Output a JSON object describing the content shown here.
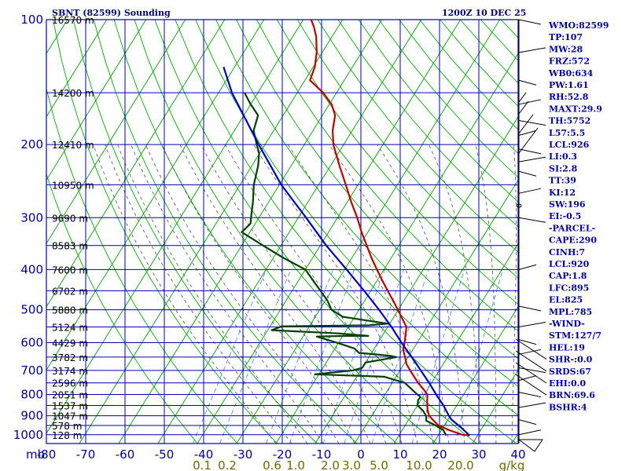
{
  "title_left": "SBNT (82599) Sounding",
  "title_right": "1200Z 10 DEC 25",
  "chart_data": {
    "type": "line",
    "subtype": "skew-t log-p sounding",
    "x_unit_label": "mb",
    "y_axis_pressure_mb": [
      100,
      200,
      300,
      400,
      500,
      600,
      700,
      800,
      900,
      1000
    ],
    "y_tick_labels": [
      "100",
      "200",
      "300",
      "400",
      "500",
      "600",
      "700",
      "800",
      "900",
      "1000"
    ],
    "x_range_c": [
      -80,
      40
    ],
    "x_tick_labels": [
      "-80",
      "-70",
      "-60",
      "-50",
      "-40",
      "-30",
      "-20",
      "-10",
      "0",
      "10",
      "20",
      "30",
      "40"
    ],
    "x_tick_values": [
      -80,
      -70,
      -60,
      -50,
      -40,
      -30,
      -20,
      -10,
      0,
      10,
      20,
      30,
      40
    ],
    "mixing_ratio_labels": [
      "0.1",
      "0.2",
      "0.6",
      "1.0",
      "2.0",
      "3.0",
      "5.0",
      "10.0",
      "20.0",
      "g/kg"
    ],
    "mixing_ratio_values": [
      0.1,
      0.2,
      0.6,
      1.0,
      2.0,
      3.0,
      5.0,
      10.0,
      20.0
    ],
    "heights": [
      {
        "p": 100,
        "label": "16570 m"
      },
      {
        "p": 150,
        "label": "14200 m"
      },
      {
        "p": 200,
        "label": "12410 m"
      },
      {
        "p": 250,
        "label": "10950 m"
      },
      {
        "p": 300,
        "label": "9690 m"
      },
      {
        "p": 350,
        "label": "8583 m"
      },
      {
        "p": 400,
        "label": "7600 m"
      },
      {
        "p": 450,
        "label": "6702 m"
      },
      {
        "p": 500,
        "label": "5880 m"
      },
      {
        "p": 550,
        "label": "5124 m"
      },
      {
        "p": 600,
        "label": "4429 m"
      },
      {
        "p": 650,
        "label": "3782 m"
      },
      {
        "p": 700,
        "label": "3174 m"
      },
      {
        "p": 750,
        "label": "2596 m"
      },
      {
        "p": 800,
        "label": "2051 m"
      },
      {
        "p": 850,
        "label": "1537 m"
      },
      {
        "p": 900,
        "label": "1047 m"
      },
      {
        "p": 950,
        "label": "578 m"
      },
      {
        "p": 1000,
        "label": "128 m"
      }
    ],
    "series": [
      {
        "name": "temperature",
        "color": "#c00000",
        "points": [
          [
            1004,
            28.0
          ],
          [
            1000,
            26.0
          ],
          [
            975,
            22.0
          ],
          [
            950,
            18.5
          ],
          [
            925,
            16.5
          ],
          [
            900,
            14.6
          ],
          [
            875,
            13.4
          ],
          [
            850,
            12.5
          ],
          [
            825,
            11.6
          ],
          [
            800,
            10.8
          ],
          [
            775,
            8.8
          ],
          [
            750,
            6.6
          ],
          [
            725,
            4.6
          ],
          [
            700,
            2.6
          ],
          [
            675,
            0.6
          ],
          [
            650,
            -0.8
          ],
          [
            625,
            -2.4
          ],
          [
            600,
            -3.2
          ],
          [
            575,
            -4.2
          ],
          [
            550,
            -5.2
          ],
          [
            525,
            -7.6
          ],
          [
            500,
            -10.1
          ],
          [
            475,
            -12.8
          ],
          [
            450,
            -15.7
          ],
          [
            425,
            -18.7
          ],
          [
            400,
            -21.8
          ],
          [
            375,
            -25.0
          ],
          [
            350,
            -28.2
          ],
          [
            325,
            -31.6
          ],
          [
            300,
            -35.0
          ],
          [
            275,
            -39.0
          ],
          [
            250,
            -43.1
          ],
          [
            225,
            -47.7
          ],
          [
            200,
            -52.6
          ],
          [
            185,
            -55.0
          ],
          [
            170,
            -56.8
          ],
          [
            160,
            -59.4
          ],
          [
            150,
            -63.4
          ],
          [
            140,
            -68.7
          ],
          [
            130,
            -69.6
          ],
          [
            120,
            -71.4
          ],
          [
            110,
            -74.0
          ],
          [
            104,
            -76.2
          ],
          [
            100,
            -78.0
          ]
        ]
      },
      {
        "name": "dewpoint",
        "color": "#004000",
        "points": [
          [
            1004,
            21.8
          ],
          [
            1000,
            21.8
          ],
          [
            975,
            20.5
          ],
          [
            950,
            17.8
          ],
          [
            925,
            14.6
          ],
          [
            900,
            13.8
          ],
          [
            875,
            12.2
          ],
          [
            850,
            10.0
          ],
          [
            825,
            9.3
          ],
          [
            812,
            9.4
          ],
          [
            808,
            9.2
          ],
          [
            800,
            8.2
          ],
          [
            750,
            3.2
          ],
          [
            725,
            -3.0
          ],
          [
            715,
            -21.0
          ],
          [
            700,
            -12.0
          ],
          [
            690,
            -10.0
          ],
          [
            670,
            -10.0
          ],
          [
            650,
            -3.0
          ],
          [
            645,
            -5.0
          ],
          [
            635,
            -13.2
          ],
          [
            620,
            -15.0
          ],
          [
            605,
            -19.0
          ],
          [
            580,
            -26.5
          ],
          [
            578,
            -19.0
          ],
          [
            578,
            -13.5
          ],
          [
            570,
            -21.5
          ],
          [
            560,
            -39.0
          ],
          [
            548,
            -37.0
          ],
          [
            545,
            -15.0
          ],
          [
            540,
            -10.5
          ],
          [
            520,
            -23.0
          ],
          [
            500,
            -27.0
          ],
          [
            475,
            -29.5
          ],
          [
            450,
            -32.8
          ],
          [
            425,
            -36.3
          ],
          [
            400,
            -40.0
          ],
          [
            375,
            -47.4
          ],
          [
            350,
            -54.6
          ],
          [
            325,
            -62.1
          ],
          [
            310,
            -61.2
          ],
          [
            300,
            -62.0
          ],
          [
            275,
            -64.0
          ],
          [
            250,
            -66.5
          ],
          [
            225,
            -68.4
          ],
          [
            210,
            -70.1
          ],
          [
            200,
            -72.1
          ],
          [
            185,
            -75.1
          ],
          [
            170,
            -76.4
          ],
          [
            160,
            -80.0
          ],
          [
            150,
            -83.4
          ]
        ]
      },
      {
        "name": "parcel",
        "color": "#0000c0",
        "points": [
          [
            1004,
            28.0
          ],
          [
            960,
            24.5
          ],
          [
            920,
            20.9
          ],
          [
            900,
            19.6
          ],
          [
            850,
            16.6
          ],
          [
            800,
            13.0
          ],
          [
            750,
            9.4
          ],
          [
            700,
            5.3
          ],
          [
            650,
            0.9
          ],
          [
            600,
            -4.0
          ],
          [
            550,
            -9.0
          ],
          [
            500,
            -14.9
          ],
          [
            450,
            -21.7
          ],
          [
            400,
            -29.5
          ],
          [
            350,
            -38.5
          ],
          [
            300,
            -48.0
          ],
          [
            250,
            -59.5
          ],
          [
            200,
            -71.6
          ],
          [
            150,
            -86.6
          ],
          [
            130,
            -92.8
          ]
        ]
      }
    ]
  },
  "indices": [
    "WMO:82599",
    "TP:107",
    "MW:28",
    "FRZ:572",
    "WB0:634",
    "PW:1.61",
    "RH:52.8",
    "MAXT:29.9",
    "TH:5752",
    "L57:5.5",
    "LCL:926",
    "LI:0.3",
    "SI:2.8",
    "TT:39",
    "KI:12",
    "SW:196",
    "EI:-0.5",
    "-PARCEL-",
    "CAPE:290",
    "CINH:7",
    "LCL:920",
    "CAP:1.8",
    "LFC:895",
    "EL:825",
    "MPL:785",
    "-WIND-",
    "STM:127/7",
    "HEL:19",
    "SHR-:0.0",
    "SRDS:67",
    "EHI:0.0",
    "BRN:69.6",
    "BSHR:4"
  ],
  "colors": {
    "grid": "#0000b0",
    "isotherm": "#00a000",
    "dry_adiabat": "#00b000",
    "moist_adiabat": "#505050",
    "mixing_ratio": "#4080ff",
    "temp": "#c00000",
    "dew": "#004000",
    "parcel": "#0000c0"
  }
}
